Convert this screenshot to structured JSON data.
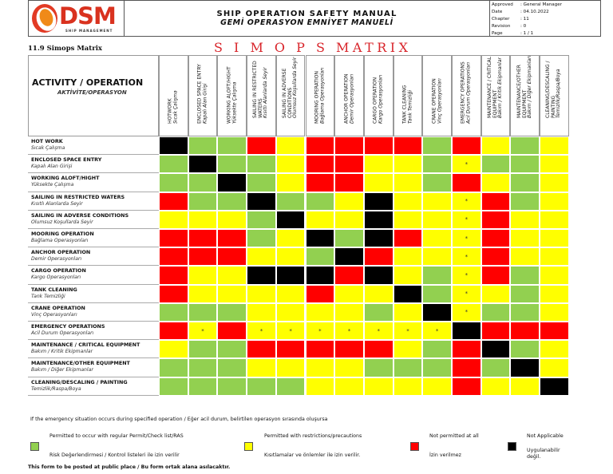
{
  "header": {
    "brand": "DSM",
    "brand_sub": "SHIP MANAGEMENT",
    "title_en": "SHIP OPERATION SAFETY MANUAL",
    "title_tr": "GEMİ OPERASYON EMNİYET MANUELİ",
    "meta": [
      {
        "key": "Approved",
        "value": "General Manager"
      },
      {
        "key": "Date",
        "value": "04.10.2022"
      },
      {
        "key": "Chapter",
        "value": "11"
      },
      {
        "key": "Revision",
        "value": "0"
      },
      {
        "key": "Page",
        "value": "1 / 1"
      }
    ]
  },
  "section_title": "11.9 Simops Matrix",
  "matrix_title": "S I M O P S MATRIX",
  "corner": {
    "en": "ACTIVITY / OPERATION",
    "tr": "AKTİVİTE/OPERASYON"
  },
  "columns": [
    {
      "en": "HOTWORK",
      "tr": "Sıcak Çalışma"
    },
    {
      "en": "ENCLOSED SPACE ENTRY",
      "tr": "Kapalı Alan Girişi"
    },
    {
      "en": "WORKING ALOFT/HIGHT",
      "tr": "Yüksekte Çalışma"
    },
    {
      "en": "SAILING IN RESTRICTED WATERS",
      "tr": "Kısıtlı Alanlarda Seyir"
    },
    {
      "en": "SAILING IN ADVERSE CONDITIONS",
      "tr": "Olumsuz Koşullarda Seyir"
    },
    {
      "en": "MOORING OPERATION",
      "tr": "Bağlama Operasyonları"
    },
    {
      "en": "ANCHOR OPERATION",
      "tr": "Demir Operasyonları"
    },
    {
      "en": "CARGO OPERATION",
      "tr": "Kargo Operasyonları"
    },
    {
      "en": "TANK CLEANING",
      "tr": "Tank Temizliği"
    },
    {
      "en": "CRANE OPERATION",
      "tr": "Vinç Operasyonları"
    },
    {
      "en": "EMERGENCY OPERATIONS",
      "tr": "Acil Durum Operasyonları"
    },
    {
      "en": "MAINTENANCE / CRITICAL EQUIPMENT",
      "tr": "Bakım / Kritik Ekipmanlar"
    },
    {
      "en": "MAINTENANCE/OTHER EQUIPMENT",
      "tr": "Bakım / Diğer Ekipmanları"
    },
    {
      "en": "CLEANING/DESCALING / PAINTING",
      "tr": "Temizlik/Raspa/Boya"
    }
  ],
  "rows": [
    {
      "en": "HOT WORK",
      "tr": "Sıcak Çalışma",
      "cells": [
        "b",
        "g",
        "g",
        "r",
        "y",
        "r",
        "r",
        "r",
        "r",
        "g",
        "r",
        "y",
        "g",
        "y"
      ],
      "marks": [
        "",
        "",
        "",
        "",
        "",
        "",
        "",
        "",
        "",
        "",
        "",
        "",
        "",
        ""
      ]
    },
    {
      "en": "ENCLOSED SPACE ENTRY",
      "tr": "Kapalı Alan Girişi",
      "cells": [
        "g",
        "b",
        "g",
        "g",
        "y",
        "r",
        "r",
        "y",
        "y",
        "g",
        "y",
        "g",
        "g",
        "y"
      ],
      "marks": [
        "",
        "",
        "",
        "",
        "",
        "",
        "",
        "",
        "",
        "",
        "*",
        "",
        "",
        ""
      ]
    },
    {
      "en": "WORKING ALOFT/HIGHT",
      "tr": "Yüksekte Çalışma",
      "cells": [
        "g",
        "g",
        "b",
        "g",
        "y",
        "r",
        "r",
        "y",
        "y",
        "g",
        "r",
        "y",
        "g",
        "y"
      ],
      "marks": [
        "",
        "",
        "",
        "",
        "",
        "",
        "",
        "",
        "",
        "",
        "",
        "",
        "",
        ""
      ]
    },
    {
      "en": "SAILING IN RESTRICTED WATERS",
      "tr": "Kısıtlı Alanlarda Seyir",
      "cells": [
        "r",
        "g",
        "g",
        "b",
        "g",
        "g",
        "y",
        "b",
        "y",
        "y",
        "y",
        "r",
        "g",
        "y"
      ],
      "marks": [
        "",
        "",
        "",
        "",
        "",
        "",
        "",
        "",
        "",
        "",
        "*",
        "",
        "",
        ""
      ]
    },
    {
      "en": "SAILING IN ADVERSE CONDITIONS",
      "tr": "Olumsuz Koşullarda Seyir",
      "cells": [
        "y",
        "y",
        "y",
        "g",
        "b",
        "y",
        "y",
        "b",
        "y",
        "y",
        "y",
        "r",
        "y",
        "y"
      ],
      "marks": [
        "",
        "",
        "",
        "",
        "",
        "",
        "",
        "",
        "",
        "",
        "*",
        "",
        "",
        ""
      ]
    },
    {
      "en": "MOORING OPERATION",
      "tr": "Bağlama Operasyonları",
      "cells": [
        "r",
        "r",
        "r",
        "g",
        "y",
        "b",
        "g",
        "b",
        "r",
        "y",
        "y",
        "r",
        "y",
        "y"
      ],
      "marks": [
        "",
        "",
        "",
        "",
        "",
        "",
        "",
        "",
        "",
        "",
        "*",
        "",
        "",
        ""
      ]
    },
    {
      "en": "ANCHOR OPERATION",
      "tr": "Demir Operasyonları",
      "cells": [
        "r",
        "r",
        "r",
        "y",
        "y",
        "g",
        "b",
        "r",
        "y",
        "y",
        "y",
        "r",
        "y",
        "y"
      ],
      "marks": [
        "",
        "",
        "",
        "",
        "",
        "",
        "",
        "",
        "",
        "",
        "*",
        "",
        "",
        ""
      ]
    },
    {
      "en": "CARGO OPERATION",
      "tr": "Kargo Operasyonları",
      "cells": [
        "r",
        "y",
        "y",
        "b",
        "b",
        "b",
        "r",
        "b",
        "y",
        "g",
        "y",
        "r",
        "g",
        "y"
      ],
      "marks": [
        "",
        "",
        "",
        "",
        "",
        "",
        "",
        "",
        "",
        "",
        "*",
        "",
        "",
        ""
      ]
    },
    {
      "en": "TANK CLEANING",
      "tr": "Tank Temizliği",
      "cells": [
        "r",
        "y",
        "y",
        "y",
        "y",
        "r",
        "y",
        "y",
        "b",
        "g",
        "y",
        "y",
        "g",
        "y"
      ],
      "marks": [
        "",
        "",
        "",
        "",
        "",
        "",
        "",
        "",
        "",
        "",
        "*",
        "",
        "",
        ""
      ]
    },
    {
      "en": "CRANE OPERATION",
      "tr": "Vinç Operasyonları",
      "cells": [
        "g",
        "g",
        "g",
        "y",
        "y",
        "y",
        "y",
        "g",
        "y",
        "b",
        "y",
        "g",
        "g",
        "y"
      ],
      "marks": [
        "",
        "",
        "",
        "",
        "",
        "",
        "",
        "",
        "",
        "",
        "*",
        "",
        "",
        ""
      ]
    },
    {
      "en": "EMERGENCY OPERATIONS",
      "tr": "Acil Durum Operasyonları",
      "cells": [
        "r",
        "y",
        "r",
        "y",
        "y",
        "y",
        "y",
        "y",
        "y",
        "y",
        "b",
        "r",
        "r",
        "r"
      ],
      "marks": [
        "",
        "*",
        "",
        "*",
        "*",
        "*",
        "*",
        "*",
        "*",
        "*",
        "",
        "",
        "",
        ""
      ]
    },
    {
      "en": "MAINTENANCE / CRITICAL EQUIPMENT",
      "tr": "Bakım / Kritik Ekipmanlar",
      "cells": [
        "y",
        "g",
        "g",
        "r",
        "r",
        "r",
        "r",
        "r",
        "y",
        "g",
        "r",
        "b",
        "g",
        "y"
      ],
      "marks": [
        "",
        "",
        "",
        "",
        "",
        "",
        "",
        "",
        "",
        "",
        "",
        "",
        "",
        ""
      ]
    },
    {
      "en": "MAINTENANCE/OTHER EQUIPMENT",
      "tr": "Bakım / Diğer Ekipmanlar",
      "cells": [
        "g",
        "g",
        "g",
        "y",
        "y",
        "y",
        "y",
        "g",
        "g",
        "g",
        "r",
        "g",
        "b",
        "y"
      ],
      "marks": [
        "",
        "",
        "",
        "",
        "",
        "",
        "",
        "",
        "",
        "",
        "",
        "",
        "",
        ""
      ]
    },
    {
      "en": "CLEANING/DESCALING / PAINTING",
      "tr": "Temizlik/Raspa/Boya",
      "cells": [
        "g",
        "g",
        "g",
        "g",
        "g",
        "y",
        "y",
        "y",
        "y",
        "y",
        "r",
        "y",
        "y",
        "b"
      ],
      "marks": [
        "",
        "",
        "",
        "",
        "",
        "",
        "",
        "",
        "",
        "",
        "",
        "",
        "",
        ""
      ]
    }
  ],
  "note": "If the emergency situation occurs during specified operation / Eğer acil durum, belirtilen operasyon sırasında oluşursa",
  "legend": [
    {
      "color": "#92d050",
      "en": "Permitted to occur with regular Permit/Check list/RAS",
      "tr": "Risk Değerlendirmesi / Kontrol listeleri ile izin verilir"
    },
    {
      "color": "#ffff00",
      "en": "Permitted with restrictions/precautions",
      "tr": "Kısıtlamalar ve önlemler ile izin verilir."
    },
    {
      "color": "#ff0000",
      "en": "Not permitted at all",
      "tr": "İzin verilmez"
    },
    {
      "color": "#000000",
      "en": "Not Applicable",
      "tr": "Uygulanabilir değil."
    }
  ],
  "posted_note": "This form to be posted at public place / Bu form ortak alana asılacaktır.",
  "colors": {
    "g": "#92d050",
    "y": "#ffff00",
    "r": "#ff0000",
    "b": "#000000",
    "title_red": "#d8242a"
  }
}
